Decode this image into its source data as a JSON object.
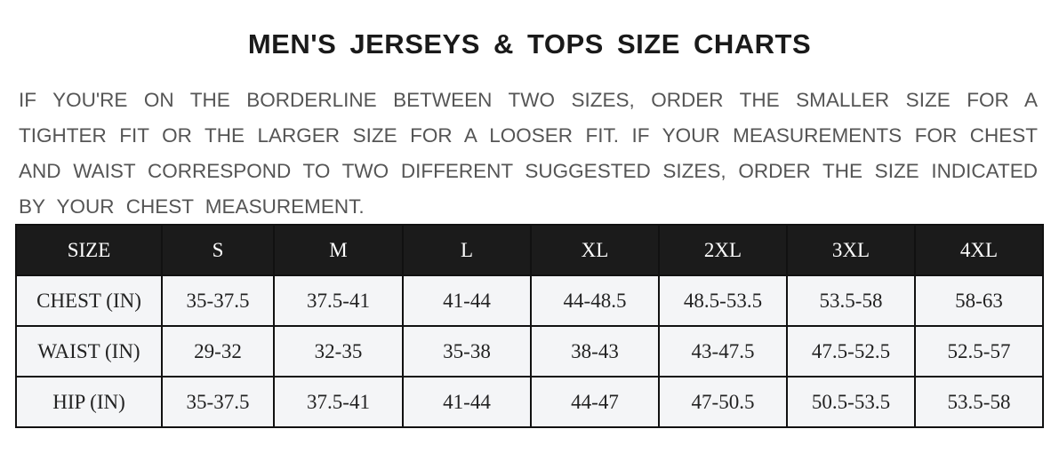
{
  "title": "MEN'S JERSEYS & TOPS SIZE CHARTS",
  "note_lines": [
    "IF YOU'RE ON THE BORDERLINE BETWEEN TWO SIZES, ORDER THE SMALLER SIZE FOR A",
    "TIGHTER FIT OR THE LARGER SIZE FOR A LOOSER FIT. IF YOUR MEASUREMENTS FOR CHEST",
    "AND WAIST CORRESPOND TO TWO DIFFERENT SUGGESTED SIZES, ORDER THE SIZE INDICATED",
    "BY YOUR CHEST MEASUREMENT."
  ],
  "table": {
    "header": [
      "SIZE",
      "S",
      "M",
      "L",
      "XL",
      "2XL",
      "3XL",
      "4XL"
    ],
    "rows": [
      [
        "CHEST (IN)",
        "35-37.5",
        "37.5-41",
        "41-44",
        "44-48.5",
        "48.5-53.5",
        "53.5-58",
        "58-63"
      ],
      [
        "WAIST (IN)",
        "29-32",
        "32-35",
        "35-38",
        "38-43",
        "43-47.5",
        "47.5-52.5",
        "52.5-57"
      ],
      [
        "HIP (IN)",
        "35-37.5",
        "37.5-41",
        "41-44",
        "44-47",
        "47-50.5",
        "50.5-53.5",
        "53.5-58"
      ]
    ]
  },
  "colors": {
    "header_bg": "#1b1b1b",
    "row_bg": "#f4f5f7",
    "note_text": "#555555"
  }
}
